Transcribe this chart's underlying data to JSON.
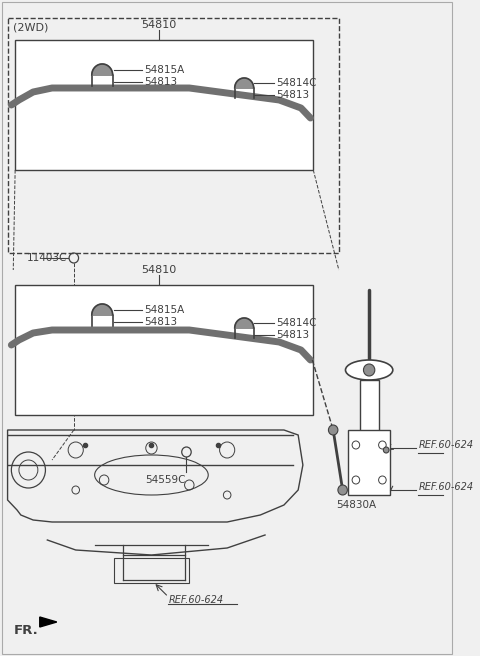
{
  "bg_color": "#f0f0f0",
  "line_color": "#404040",
  "bar_color": "#707070",
  "fill_color": "#909090",
  "white": "#ffffff",
  "labels": {
    "2wd": "(2WD)",
    "fr": "FR.",
    "54810_top": "54810",
    "54810_bot": "54810",
    "54815A_top": "54815A",
    "54813_top1": "54813",
    "54814C_top": "54814C",
    "54813_top2": "54813",
    "54815A_bot": "54815A",
    "54813_bot1": "54813",
    "54814C_bot": "54814C",
    "54813_bot2": "54813",
    "54559C": "54559C",
    "54830A": "54830A",
    "11403C": "11403C",
    "ref1": "REF.60-624",
    "ref2": "REF.60-624",
    "ref3": "REF.60-624"
  }
}
